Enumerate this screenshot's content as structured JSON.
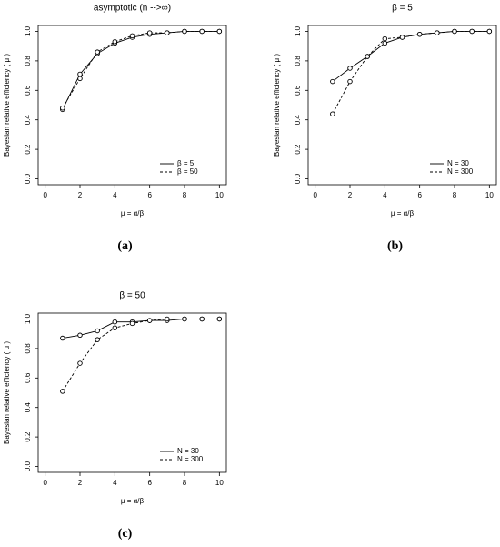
{
  "chart_data": [
    {
      "type": "line",
      "panel_label": "(a)",
      "title": "asymptotic (n -->∞)",
      "x_label": "μ = α/β",
      "y_label": "Bayesian relative efficiency ( μ )",
      "x": [
        1,
        2,
        3,
        4,
        5,
        6,
        7,
        8,
        9,
        10
      ],
      "series": [
        {
          "name": "β = 5",
          "color": "#000000",
          "linestyle": "solid",
          "values": [
            0.47,
            0.71,
            0.85,
            0.92,
            0.96,
            0.98,
            0.99,
            1.0,
            1.0,
            1.0
          ]
        },
        {
          "name": "β = 50",
          "color": "#000000",
          "linestyle": "dashed",
          "values": [
            0.48,
            0.68,
            0.86,
            0.93,
            0.97,
            0.99,
            0.99,
            1.0,
            1.0,
            1.0
          ]
        }
      ],
      "xlim": [
        -0.4,
        10.4
      ],
      "ylim": [
        -0.04,
        1.04
      ],
      "xticks": [
        0,
        2,
        4,
        6,
        8,
        10
      ],
      "yticks": [
        {
          "value": 0,
          "label": "0.0"
        },
        0.2,
        0.4,
        0.6,
        0.8,
        {
          "value": 1,
          "label": "1.0"
        }
      ],
      "legend": "bottom-right",
      "marker": "open-circle"
    },
    {
      "type": "line",
      "panel_label": "(b)",
      "title": "β = 5",
      "x_label": "μ = α/β",
      "y_label": "Bayesian relative efficiency ( μ )",
      "x": [
        1,
        2,
        3,
        4,
        5,
        6,
        7,
        8,
        9,
        10
      ],
      "series": [
        {
          "name": "N = 30",
          "color": "#000000",
          "linestyle": "solid",
          "values": [
            0.66,
            0.75,
            0.83,
            0.92,
            0.96,
            0.98,
            0.99,
            1.0,
            1.0,
            1.0
          ]
        },
        {
          "name": "N = 300",
          "color": "#000000",
          "linestyle": "dashed",
          "values": [
            0.44,
            0.66,
            0.83,
            0.95,
            0.96,
            0.98,
            0.99,
            1.0,
            1.0,
            1.0
          ]
        }
      ],
      "xlim": [
        -0.4,
        10.4
      ],
      "ylim": [
        -0.04,
        1.04
      ],
      "xticks": [
        0,
        2,
        4,
        6,
        8,
        10
      ],
      "yticks": [
        {
          "value": 0,
          "label": "0.0"
        },
        0.2,
        0.4,
        0.6,
        0.8,
        {
          "value": 1,
          "label": "1.0"
        }
      ],
      "legend": "bottom-right",
      "marker": "open-circle"
    },
    {
      "type": "line",
      "panel_label": "(c)",
      "title": "β = 50",
      "x_label": "μ = α/β",
      "y_label": "Bayesian relative efficiency ( μ )",
      "x": [
        1,
        2,
        3,
        4,
        5,
        6,
        7,
        8,
        9,
        10
      ],
      "series": [
        {
          "name": "N = 30",
          "color": "#000000",
          "linestyle": "solid",
          "values": [
            0.87,
            0.89,
            0.92,
            0.98,
            0.98,
            0.99,
            0.99,
            1.0,
            1.0,
            1.0
          ]
        },
        {
          "name": "N = 300",
          "color": "#000000",
          "linestyle": "dashed",
          "values": [
            0.51,
            0.7,
            0.86,
            0.94,
            0.97,
            0.99,
            1.0,
            1.0,
            1.0,
            1.0
          ]
        }
      ],
      "xlim": [
        -0.4,
        10.4
      ],
      "ylim": [
        -0.04,
        1.04
      ],
      "xticks": [
        0,
        2,
        4,
        6,
        8,
        10
      ],
      "yticks": [
        {
          "value": 0,
          "label": "0.0"
        },
        0.2,
        0.4,
        0.6,
        0.8,
        {
          "value": 1,
          "label": "1.0"
        }
      ],
      "legend": "bottom-right",
      "marker": "open-circle"
    }
  ]
}
